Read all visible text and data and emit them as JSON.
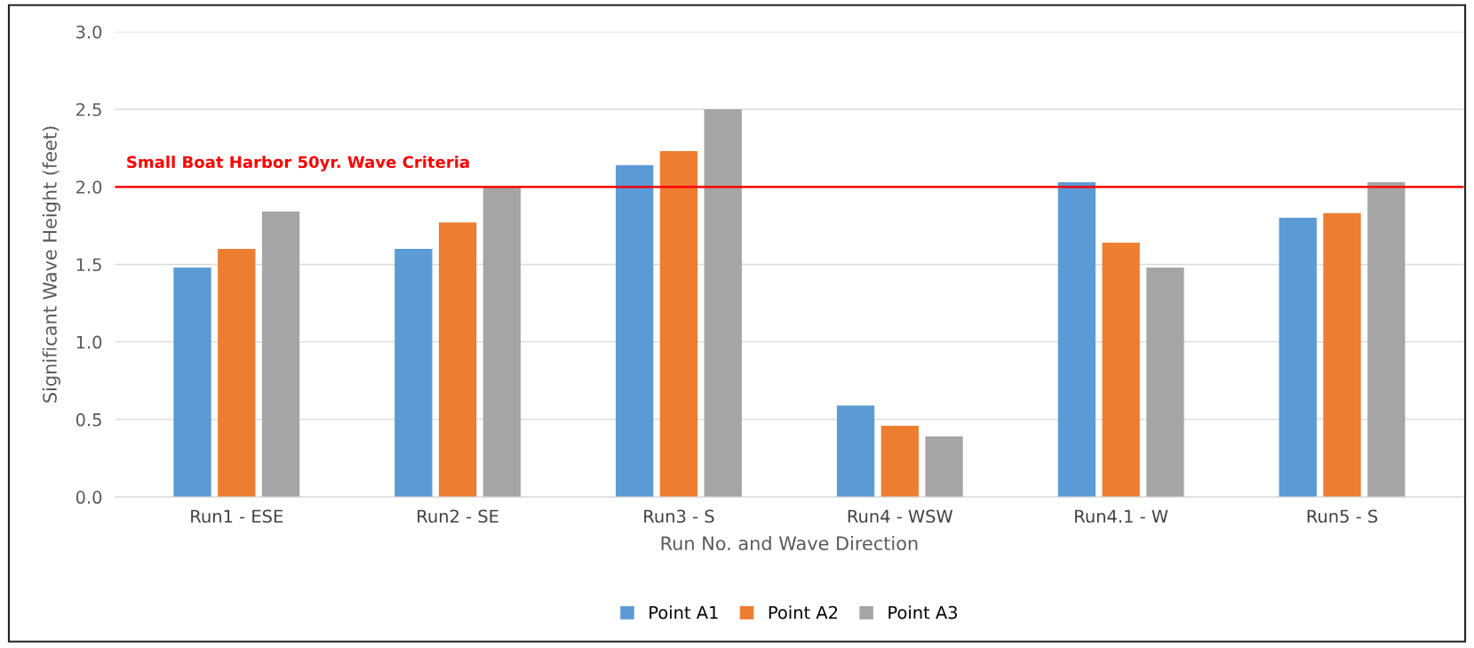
{
  "chart_data": {
    "type": "bar",
    "xlabel": "Run No. and Wave Direction",
    "ylabel": "Significant Wave Height (feet)",
    "categories": [
      "Run1 - ESE",
      "Run2 - SE",
      "Run3 - S",
      "Run4 - WSW",
      "Run4.1 - W",
      "Run5 - S"
    ],
    "series": [
      {
        "name": "Point A1",
        "color": "#5b9bd5",
        "values": [
          1.48,
          1.6,
          2.14,
          0.59,
          2.03,
          1.8
        ]
      },
      {
        "name": "Point A2",
        "color": "#ed7d31",
        "values": [
          1.6,
          1.77,
          2.23,
          0.46,
          1.64,
          1.83
        ]
      },
      {
        "name": "Point A3",
        "color": "#a5a5a5",
        "values": [
          1.84,
          2.0,
          2.5,
          0.39,
          1.48,
          2.03
        ]
      }
    ],
    "ylim": [
      0,
      3
    ],
    "yticks": [
      {
        "value": 0,
        "label": "0.0"
      },
      {
        "value": 0.5,
        "label": "0.5"
      },
      {
        "value": 1,
        "label": "1.0"
      },
      {
        "value": 1.5,
        "label": "1.5"
      },
      {
        "value": 2,
        "label": "2.0"
      },
      {
        "value": 2.5,
        "label": "2.5"
      },
      {
        "value": 3,
        "label": "3.0"
      }
    ],
    "grid": "y",
    "legend": "bottom",
    "ref_lines": [
      {
        "axis": "y",
        "value": 2.0,
        "label": "Small Boat Harbor 50yr. Wave Criteria",
        "color": "#ff0000"
      }
    ]
  }
}
